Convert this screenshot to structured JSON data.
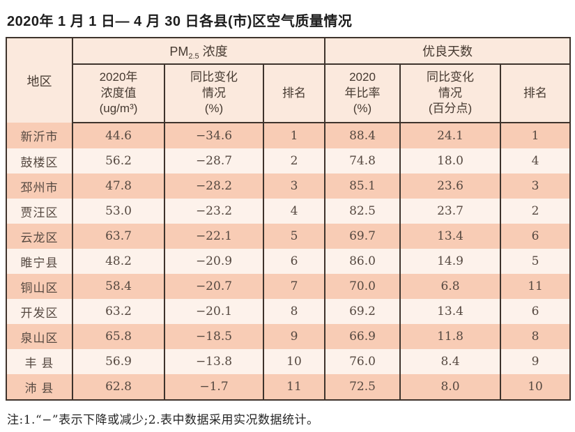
{
  "title": "2020年 1 月 1 日— 4 月 30 日各县(市)区空气质量情况",
  "table": {
    "header": {
      "region": "地区",
      "group_pm": {
        "prefix": "PM",
        "sub": "2.5",
        "suffix": " 浓度"
      },
      "group_days": "优良天数",
      "sub_columns": [
        {
          "lines": [
            "2020年",
            "浓度值",
            "(ug/m³)"
          ]
        },
        {
          "lines": [
            "同比变化",
            "情况",
            "(%)"
          ]
        },
        {
          "lines": [
            "排名"
          ]
        },
        {
          "lines": [
            "2020",
            "年比率",
            "(%)"
          ]
        },
        {
          "lines": [
            "同比变化",
            "情况",
            "(百分点)"
          ]
        },
        {
          "lines": [
            "排名"
          ]
        }
      ]
    },
    "rows": [
      {
        "region": "新沂市",
        "values": [
          "44.6",
          "−34.6",
          "1",
          "88.4",
          "24.1",
          "1"
        ]
      },
      {
        "region": "鼓楼区",
        "values": [
          "56.2",
          "−28.7",
          "2",
          "74.8",
          "18.0",
          "4"
        ]
      },
      {
        "region": "邳州市",
        "values": [
          "47.8",
          "−28.2",
          "3",
          "85.1",
          "23.6",
          "3"
        ]
      },
      {
        "region": "贾汪区",
        "values": [
          "53.0",
          "−23.2",
          "4",
          "82.5",
          "23.7",
          "2"
        ]
      },
      {
        "region": "云龙区",
        "values": [
          "63.7",
          "−22.1",
          "5",
          "69.7",
          "13.4",
          "6"
        ]
      },
      {
        "region": "睢宁县",
        "values": [
          "48.2",
          "−20.9",
          "6",
          "86.0",
          "14.9",
          "5"
        ]
      },
      {
        "region": "铜山区",
        "values": [
          "58.4",
          "−20.7",
          "7",
          "70.0",
          "6.8",
          "11"
        ]
      },
      {
        "region": "开发区",
        "values": [
          "63.2",
          "−20.1",
          "8",
          "69.2",
          "13.4",
          "6"
        ]
      },
      {
        "region": "泉山区",
        "values": [
          "65.8",
          "−18.5",
          "9",
          "66.9",
          "11.8",
          "8"
        ]
      },
      {
        "region": "丰 县",
        "values": [
          "56.9",
          "−13.8",
          "10",
          "76.0",
          "8.4",
          "9"
        ]
      },
      {
        "region": "沛 县",
        "values": [
          "62.8",
          "−1.7",
          "11",
          "72.5",
          "8.0",
          "10"
        ]
      }
    ]
  },
  "note": "注:1.“−”表示下降或减少;2.表中数据采用实况数据统计。",
  "colors": {
    "border": "#3e332c",
    "header_bg": "#fbe9dd",
    "row_odd_bg": "#f8ccb5",
    "row_even_bg": "#fdf2eb",
    "text": "#554840"
  }
}
